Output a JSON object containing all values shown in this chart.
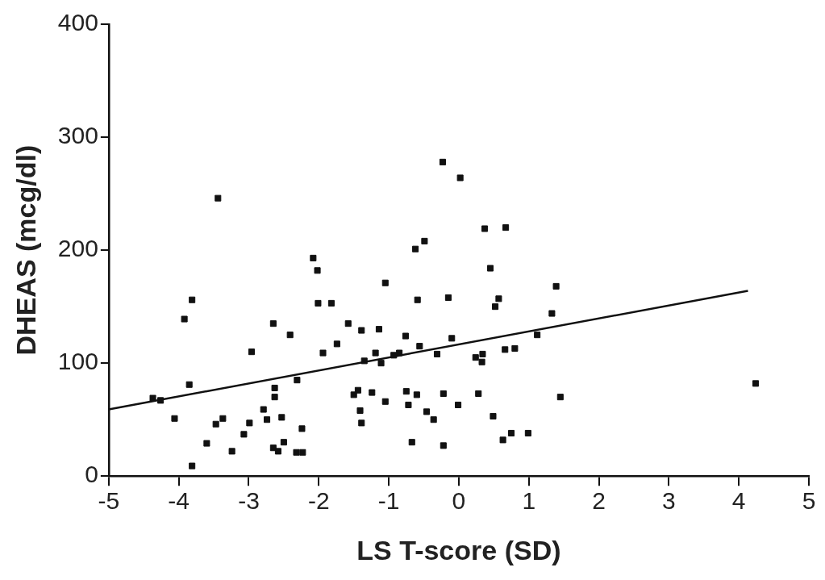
{
  "chart_data": {
    "type": "scatter",
    "xlabel": "LS T-score (SD)",
    "ylabel": "DHEAS (mcg/dl)",
    "xlim": [
      -5,
      5
    ],
    "ylim": [
      0,
      400
    ],
    "xticks": [
      -5,
      -4,
      -3,
      -2,
      -1,
      0,
      1,
      2,
      3,
      4,
      5
    ],
    "yticks": [
      0,
      100,
      200,
      300,
      400
    ],
    "grid": false,
    "legend": false,
    "series": [
      {
        "type": "scatter",
        "marker": "square",
        "color": "#111111",
        "x": [
          -3.44,
          -2.08,
          -2.02,
          -3.81,
          -2.01,
          -1.82,
          -3.92,
          -2.65,
          -1.58,
          -2.41,
          -1.74,
          -2.96,
          -1.94,
          -2.31,
          -3.85,
          -2.63,
          -2.63,
          -4.37,
          -4.26,
          -1.5,
          -2.79,
          -4.06,
          -3.37,
          -3.47,
          -2.99,
          -2.74,
          -2.53,
          -2.24,
          -3.07,
          -3.6,
          -2.5,
          -3.24,
          -2.65,
          -2.58,
          -2.32,
          -2.23,
          -3.81,
          -0.23,
          0.02,
          0.37,
          0.67,
          -0.49,
          -0.62,
          0.45,
          -1.05,
          1.39,
          -0.59,
          -0.15,
          0.57,
          0.52,
          1.33,
          -1.39,
          -1.14,
          -0.76,
          -0.1,
          1.12,
          -0.56,
          -1.19,
          -0.85,
          -0.93,
          -0.31,
          -1.35,
          -1.11,
          0.34,
          0.24,
          0.33,
          0.66,
          0.8,
          -1.44,
          -1.24,
          -1.05,
          -0.75,
          -0.6,
          -0.72,
          -0.22,
          0.28,
          1.45,
          -0.01,
          -1.41,
          -1.39,
          -0.46,
          -0.36,
          0.49,
          0.75,
          0.63,
          0.99,
          -0.67,
          -0.22,
          4.24
        ],
        "values": [
          246,
          193,
          182,
          156,
          153,
          153,
          139,
          135,
          135,
          125,
          117,
          110,
          109,
          85,
          81,
          78,
          70,
          69,
          67,
          72,
          59,
          51,
          51,
          46,
          47,
          50,
          52,
          42,
          37,
          29,
          30,
          22,
          25,
          22,
          21,
          21,
          9,
          278,
          264,
          219,
          220,
          208,
          201,
          184,
          171,
          168,
          156,
          158,
          157,
          150,
          144,
          129,
          130,
          124,
          122,
          125,
          115,
          109,
          109,
          107,
          108,
          102,
          100,
          108,
          105,
          101,
          112,
          113,
          76,
          74,
          66,
          75,
          72,
          63,
          73,
          73,
          70,
          63,
          58,
          47,
          57,
          50,
          53,
          38,
          32,
          38,
          30,
          27,
          82
        ]
      },
      {
        "type": "line",
        "marker": "none",
        "color": "#111111",
        "x": [
          -5,
          4.13
        ],
        "values": [
          59,
          164
        ]
      }
    ]
  }
}
